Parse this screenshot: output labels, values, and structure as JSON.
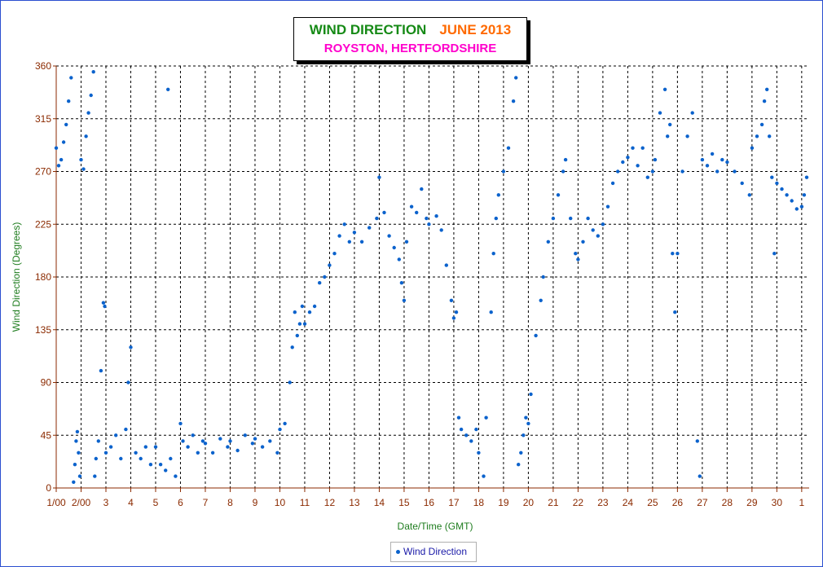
{
  "colors": {
    "series": "#0b62cc",
    "axis_title": "#1e7c1e",
    "tick_label": "#8b2a00",
    "title_wind": "#168a16",
    "title_month": "#ff6a00",
    "subtitle": "#ff00cc",
    "axis": "#8b2a00",
    "frame": "#2a4fd0"
  },
  "chart_data": {
    "type": "scatter",
    "title_wind": "WIND DIRECTION",
    "title_month": "JUNE 2013",
    "subtitle": "ROYSTON, HERTFORDSHIRE",
    "xlabel": "Date/Time (GMT)",
    "ylabel": "Wind Direction (Degrees)",
    "x_unit": "day of month (June 2013)",
    "xlim": [
      1,
      31.3
    ],
    "ylim": [
      0,
      360
    ],
    "yticks": [
      0,
      45,
      90,
      135,
      180,
      225,
      270,
      315,
      360
    ],
    "xtick_labels": [
      {
        "x": 1,
        "label": "1/00"
      },
      {
        "x": 2,
        "label": "2/00"
      },
      {
        "x": 3,
        "label": "3"
      },
      {
        "x": 4,
        "label": "4"
      },
      {
        "x": 5,
        "label": "5"
      },
      {
        "x": 6,
        "label": "6"
      },
      {
        "x": 7,
        "label": "7"
      },
      {
        "x": 8,
        "label": "8"
      },
      {
        "x": 9,
        "label": "9"
      },
      {
        "x": 10,
        "label": "10"
      },
      {
        "x": 11,
        "label": "11"
      },
      {
        "x": 12,
        "label": "12"
      },
      {
        "x": 13,
        "label": "13"
      },
      {
        "x": 14,
        "label": "14"
      },
      {
        "x": 15,
        "label": "15"
      },
      {
        "x": 16,
        "label": "16"
      },
      {
        "x": 17,
        "label": "17"
      },
      {
        "x": 18,
        "label": "18"
      },
      {
        "x": 19,
        "label": "19"
      },
      {
        "x": 20,
        "label": "20"
      },
      {
        "x": 21,
        "label": "21"
      },
      {
        "x": 22,
        "label": "22"
      },
      {
        "x": 23,
        "label": "23"
      },
      {
        "x": 24,
        "label": "24"
      },
      {
        "x": 25,
        "label": "25"
      },
      {
        "x": 26,
        "label": "26"
      },
      {
        "x": 27,
        "label": "27"
      },
      {
        "x": 28,
        "label": "28"
      },
      {
        "x": 29,
        "label": "29"
      },
      {
        "x": 30,
        "label": "30"
      },
      {
        "x": 31,
        "label": "1"
      }
    ],
    "grid": true,
    "legend_position": "bottom-center",
    "series": [
      {
        "name": "Wind Direction",
        "points": [
          [
            1.0,
            290
          ],
          [
            1.1,
            275
          ],
          [
            1.2,
            280
          ],
          [
            1.3,
            295
          ],
          [
            1.4,
            310
          ],
          [
            1.5,
            330
          ],
          [
            1.6,
            350
          ],
          [
            1.7,
            5
          ],
          [
            1.75,
            20
          ],
          [
            1.8,
            40
          ],
          [
            1.85,
            48
          ],
          [
            1.9,
            30
          ],
          [
            1.95,
            10
          ],
          [
            2.0,
            280
          ],
          [
            2.1,
            272
          ],
          [
            2.2,
            300
          ],
          [
            2.3,
            320
          ],
          [
            2.4,
            335
          ],
          [
            2.5,
            355
          ],
          [
            2.55,
            10
          ],
          [
            2.6,
            25
          ],
          [
            2.7,
            40
          ],
          [
            2.8,
            100
          ],
          [
            2.9,
            158
          ],
          [
            2.95,
            155
          ],
          [
            3.0,
            30
          ],
          [
            3.2,
            35
          ],
          [
            3.4,
            45
          ],
          [
            3.6,
            25
          ],
          [
            3.8,
            50
          ],
          [
            3.9,
            90
          ],
          [
            4.0,
            120
          ],
          [
            4.2,
            30
          ],
          [
            4.4,
            25
          ],
          [
            4.6,
            35
          ],
          [
            4.8,
            20
          ],
          [
            5.0,
            35
          ],
          [
            5.2,
            20
          ],
          [
            5.4,
            15
          ],
          [
            5.5,
            340
          ],
          [
            5.6,
            25
          ],
          [
            5.8,
            10
          ],
          [
            6.0,
            55
          ],
          [
            6.1,
            40
          ],
          [
            6.3,
            35
          ],
          [
            6.5,
            45
          ],
          [
            6.7,
            30
          ],
          [
            6.9,
            40
          ],
          [
            7.0,
            38
          ],
          [
            7.3,
            30
          ],
          [
            7.6,
            42
          ],
          [
            7.9,
            35
          ],
          [
            8.0,
            40
          ],
          [
            8.3,
            32
          ],
          [
            8.6,
            45
          ],
          [
            8.9,
            38
          ],
          [
            9.0,
            42
          ],
          [
            9.3,
            35
          ],
          [
            9.6,
            40
          ],
          [
            9.9,
            30
          ],
          [
            10.0,
            50
          ],
          [
            10.2,
            55
          ],
          [
            10.4,
            90
          ],
          [
            10.5,
            120
          ],
          [
            10.6,
            150
          ],
          [
            10.7,
            130
          ],
          [
            10.8,
            140
          ],
          [
            10.9,
            155
          ],
          [
            11.0,
            140
          ],
          [
            11.2,
            150
          ],
          [
            11.4,
            155
          ],
          [
            11.6,
            175
          ],
          [
            11.8,
            180
          ],
          [
            12.0,
            190
          ],
          [
            12.2,
            200
          ],
          [
            12.4,
            215
          ],
          [
            12.6,
            225
          ],
          [
            12.8,
            210
          ],
          [
            13.0,
            218
          ],
          [
            13.3,
            210
          ],
          [
            13.6,
            222
          ],
          [
            13.9,
            230
          ],
          [
            14.0,
            265
          ],
          [
            14.2,
            235
          ],
          [
            14.4,
            215
          ],
          [
            14.6,
            205
          ],
          [
            14.8,
            195
          ],
          [
            14.9,
            175
          ],
          [
            15.0,
            160
          ],
          [
            15.1,
            210
          ],
          [
            15.3,
            240
          ],
          [
            15.5,
            235
          ],
          [
            15.7,
            255
          ],
          [
            15.9,
            230
          ],
          [
            16.0,
            225
          ],
          [
            16.3,
            232
          ],
          [
            16.5,
            220
          ],
          [
            16.7,
            190
          ],
          [
            16.9,
            160
          ],
          [
            17.0,
            145
          ],
          [
            17.1,
            150
          ],
          [
            17.2,
            60
          ],
          [
            17.3,
            50
          ],
          [
            17.5,
            45
          ],
          [
            17.7,
            40
          ],
          [
            17.9,
            50
          ],
          [
            18.0,
            30
          ],
          [
            18.2,
            10
          ],
          [
            18.3,
            60
          ],
          [
            18.5,
            150
          ],
          [
            18.6,
            200
          ],
          [
            18.7,
            230
          ],
          [
            18.8,
            250
          ],
          [
            19.0,
            270
          ],
          [
            19.2,
            290
          ],
          [
            19.4,
            330
          ],
          [
            19.5,
            350
          ],
          [
            19.6,
            20
          ],
          [
            19.7,
            30
          ],
          [
            19.8,
            45
          ],
          [
            19.9,
            60
          ],
          [
            20.0,
            55
          ],
          [
            20.1,
            80
          ],
          [
            20.3,
            130
          ],
          [
            20.5,
            160
          ],
          [
            20.6,
            180
          ],
          [
            20.8,
            210
          ],
          [
            21.0,
            230
          ],
          [
            21.2,
            250
          ],
          [
            21.4,
            270
          ],
          [
            21.5,
            280
          ],
          [
            21.7,
            230
          ],
          [
            21.9,
            200
          ],
          [
            22.0,
            195
          ],
          [
            22.2,
            210
          ],
          [
            22.4,
            230
          ],
          [
            22.6,
            220
          ],
          [
            22.8,
            215
          ],
          [
            23.0,
            225
          ],
          [
            23.2,
            240
          ],
          [
            23.4,
            260
          ],
          [
            23.6,
            270
          ],
          [
            23.8,
            278
          ],
          [
            24.0,
            282
          ],
          [
            24.2,
            290
          ],
          [
            24.4,
            275
          ],
          [
            24.6,
            290
          ],
          [
            24.8,
            265
          ],
          [
            25.0,
            270
          ],
          [
            25.1,
            280
          ],
          [
            25.3,
            320
          ],
          [
            25.5,
            340
          ],
          [
            25.6,
            300
          ],
          [
            25.7,
            310
          ],
          [
            25.8,
            200
          ],
          [
            25.9,
            150
          ],
          [
            26.0,
            200
          ],
          [
            26.2,
            270
          ],
          [
            26.4,
            300
          ],
          [
            26.6,
            320
          ],
          [
            26.8,
            40
          ],
          [
            26.9,
            10
          ],
          [
            27.0,
            280
          ],
          [
            27.2,
            275
          ],
          [
            27.4,
            285
          ],
          [
            27.6,
            270
          ],
          [
            27.8,
            280
          ],
          [
            28.0,
            278
          ],
          [
            28.3,
            270
          ],
          [
            28.6,
            260
          ],
          [
            28.9,
            250
          ],
          [
            29.0,
            290
          ],
          [
            29.2,
            300
          ],
          [
            29.4,
            310
          ],
          [
            29.5,
            330
          ],
          [
            29.6,
            340
          ],
          [
            29.7,
            300
          ],
          [
            29.8,
            265
          ],
          [
            29.9,
            200
          ],
          [
            30.0,
            260
          ],
          [
            30.2,
            255
          ],
          [
            30.4,
            250
          ],
          [
            30.6,
            245
          ],
          [
            30.8,
            238
          ],
          [
            31.0,
            240
          ],
          [
            31.1,
            250
          ],
          [
            31.2,
            265
          ]
        ]
      }
    ]
  }
}
